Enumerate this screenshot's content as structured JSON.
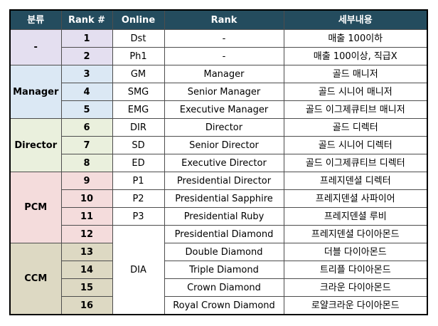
{
  "header": {
    "group": "분류",
    "rank_no": "Rank #",
    "online": "Online",
    "rank": "Rank",
    "detail": "세부내용"
  },
  "colors": {
    "header_bg": "#244c5e",
    "group_dash": "#e4dff0",
    "group_manager": "#dbe8f4",
    "group_director": "#eaf0dd",
    "group_pcm": "#f4dcdc",
    "group_ccm": "#ddd9c3"
  },
  "groups": {
    "dash": "-",
    "manager": "Manager",
    "director": "Director",
    "pcm": "PCM",
    "ccm": "CCM"
  },
  "dia_online": "DIA",
  "rows": [
    {
      "num": "1",
      "online": "Dst",
      "rank": "-",
      "detail": "매출 100이하"
    },
    {
      "num": "2",
      "online": "Ph1",
      "rank": "-",
      "detail": "매출 100이상, 직급X"
    },
    {
      "num": "3",
      "online": "GM",
      "rank": "Manager",
      "detail": "골드 매니저"
    },
    {
      "num": "4",
      "online": "SMG",
      "rank": "Senior Manager",
      "detail": "골드 시니어 매니저"
    },
    {
      "num": "5",
      "online": "EMG",
      "rank": "Executive Manager",
      "detail": "골드 이그제큐티브 매니저"
    },
    {
      "num": "6",
      "online": "DIR",
      "rank": "Director",
      "detail": "골드 디렉터"
    },
    {
      "num": "7",
      "online": "SD",
      "rank": "Senior Director",
      "detail": "골드 시니어 디렉터"
    },
    {
      "num": "8",
      "online": "ED",
      "rank": "Executive Director",
      "detail": "골드 이그제큐티브 디렉터"
    },
    {
      "num": "9",
      "online": "P1",
      "rank": "Presidential Director",
      "detail": "프레지덴셜 디렉터"
    },
    {
      "num": "10",
      "online": "P2",
      "rank": "Presidential Sapphire",
      "detail": "프레지덴셜 사파이어"
    },
    {
      "num": "11",
      "online": "P3",
      "rank": "Presidential Ruby",
      "detail": "프레지덴셜 루비"
    },
    {
      "num": "12",
      "online": "",
      "rank": "Presidential Diamond",
      "detail": "프레지덴셜 다이아몬드"
    },
    {
      "num": "13",
      "online": "",
      "rank": "Double Diamond",
      "detail": "더블 다이아몬드"
    },
    {
      "num": "14",
      "online": "",
      "rank": "Triple Diamond",
      "detail": "트리플 다이아몬드"
    },
    {
      "num": "15",
      "online": "",
      "rank": "Crown Diamond",
      "detail": "크라운 다이아몬드"
    },
    {
      "num": "16",
      "online": "",
      "rank": "Royal Crown Diamond",
      "detail": "로얄크라운 다이아몬드"
    }
  ]
}
